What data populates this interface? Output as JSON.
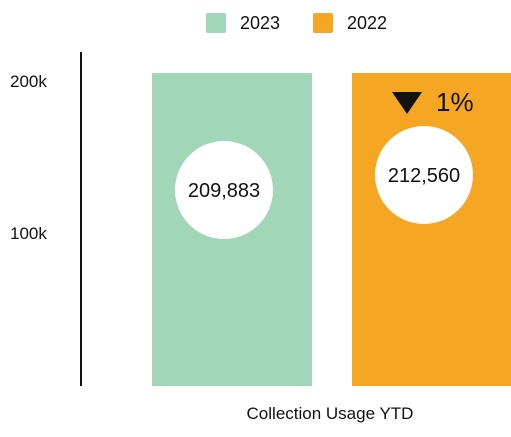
{
  "chart_data": {
    "type": "bar",
    "categories": [
      "2023",
      "2022"
    ],
    "series": [
      {
        "name": "2023",
        "value": 209883,
        "value_label": "209,883",
        "color": "#a1d6b9"
      },
      {
        "name": "2022",
        "value": 212560,
        "value_label": "212,560",
        "color": "#f5a623"
      }
    ],
    "ylim": [
      0,
      220000
    ],
    "yticks": [
      {
        "value": 200000,
        "label": "200k"
      },
      {
        "value": 100000,
        "label": "100k"
      }
    ],
    "xlabel": "Collection Usage YTD",
    "legend": {
      "position": "top-center"
    },
    "change": {
      "direction": "down",
      "label": "1%",
      "icon": "triangle-down-icon"
    }
  }
}
